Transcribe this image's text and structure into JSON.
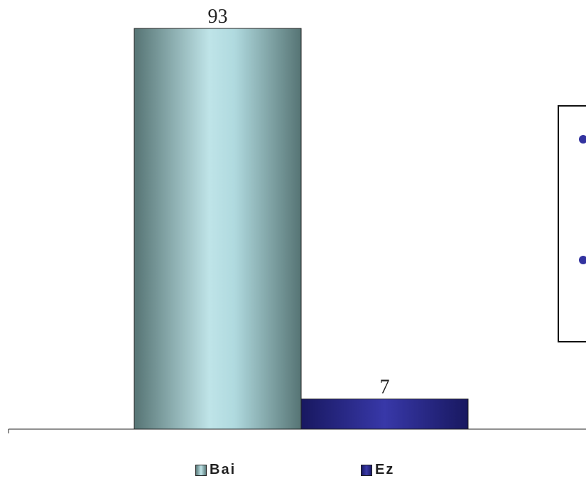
{
  "chart_data": {
    "type": "bar",
    "categories": [
      "Bai",
      "Ez"
    ],
    "values": [
      93,
      7
    ],
    "data_labels": [
      "93",
      "7"
    ],
    "title": "",
    "xlabel": "",
    "ylabel": "",
    "ylim": [
      0,
      100
    ],
    "grid": false,
    "legend_position": "bottom",
    "colors": {
      "Bai": {
        "dark": "#567474",
        "light": "#bfe4e8"
      },
      "Ez": {
        "dark": "#181860",
        "light": "#3838a8"
      }
    }
  },
  "legend": {
    "items": [
      {
        "label": "Bai"
      },
      {
        "label": "Ez"
      }
    ]
  },
  "side_panel": {
    "bullet_color": "#3333a0"
  }
}
